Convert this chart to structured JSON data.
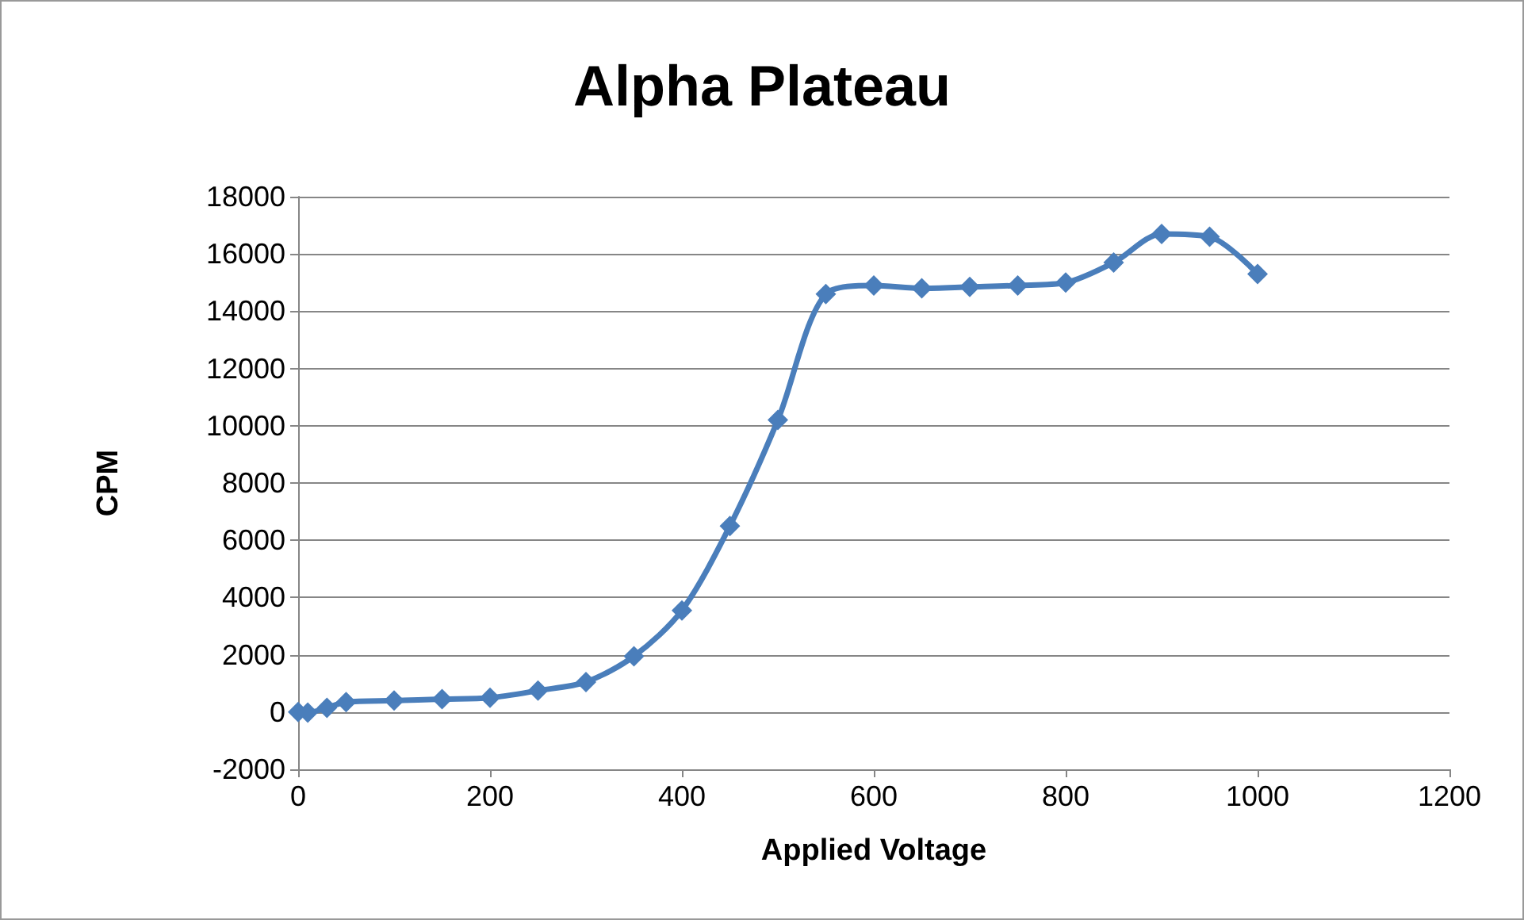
{
  "chart_data": {
    "type": "line",
    "title": "Alpha Plateau",
    "xlabel": "Applied Voltage",
    "ylabel": "CPM",
    "x": [
      0,
      10,
      30,
      50,
      100,
      150,
      200,
      250,
      300,
      350,
      400,
      450,
      500,
      550,
      600,
      650,
      700,
      750,
      800,
      850,
      900,
      950,
      1000
    ],
    "series": [
      {
        "color": "#4a7ebb",
        "values": [
          0,
          -20,
          150,
          350,
          400,
          450,
          500,
          750,
          1050,
          1950,
          3550,
          6500,
          10200,
          14600,
          14900,
          14800,
          14850,
          14900,
          15000,
          15700,
          16700,
          16600,
          15300
        ]
      }
    ],
    "xlim": [
      0,
      1200
    ],
    "xticks": [
      0,
      200,
      400,
      600,
      800,
      1000,
      1200
    ],
    "ylim": [
      -2000,
      18000
    ],
    "yticks": [
      -2000,
      0,
      2000,
      4000,
      6000,
      8000,
      10000,
      12000,
      14000,
      16000,
      18000
    ],
    "grid": "y",
    "marker": "diamond",
    "line_style": "solid"
  }
}
